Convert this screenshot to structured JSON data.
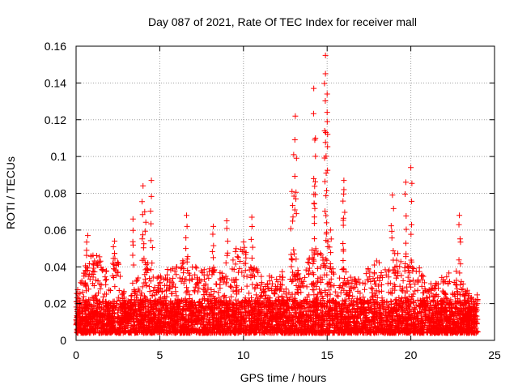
{
  "chart_data": {
    "type": "scatter",
    "title": "Day 087 of 2021, Rate Of TEC Index for receiver mall",
    "xlabel": "GPS time / hours",
    "ylabel": "ROTI / TECUs",
    "xlim": [
      0,
      25
    ],
    "ylim": [
      0,
      0.16
    ],
    "x_ticks": [
      0,
      5,
      10,
      15,
      20,
      25
    ],
    "x_tick_labels": [
      "0",
      "5",
      "10",
      "15",
      "20",
      "25"
    ],
    "y_ticks": [
      0,
      0.02,
      0.04,
      0.06,
      0.08,
      0.1,
      0.12,
      0.14,
      0.16
    ],
    "y_tick_labels": [
      "0",
      "0.02",
      "0.04",
      "0.06",
      "0.08",
      "0.1",
      "0.12",
      "0.14",
      "0.16"
    ],
    "grid": true,
    "marker": "+",
    "marker_color": "#ff0000",
    "series": [
      {
        "name": "",
        "envelope_hours": [
          0,
          0.5,
          1,
          1.5,
          2,
          2.5,
          3,
          3.5,
          4,
          4.5,
          5,
          5.5,
          6,
          6.5,
          7,
          7.5,
          8,
          8.5,
          9,
          9.5,
          10,
          10.5,
          11,
          11.5,
          12,
          12.5,
          13,
          13.5,
          14,
          14.5,
          15,
          15.5,
          16,
          16.5,
          17,
          17.5,
          18,
          18.5,
          19,
          19.5,
          20,
          20.5,
          21,
          21.5,
          22,
          22.5,
          23,
          23.5,
          24
        ],
        "envelope_typical_max": [
          0.025,
          0.04,
          0.05,
          0.045,
          0.045,
          0.05,
          0.02,
          0.03,
          0.045,
          0.04,
          0.035,
          0.04,
          0.04,
          0.045,
          0.04,
          0.04,
          0.04,
          0.04,
          0.035,
          0.05,
          0.055,
          0.045,
          0.035,
          0.035,
          0.035,
          0.04,
          0.05,
          0.035,
          0.05,
          0.05,
          0.05,
          0.035,
          0.04,
          0.035,
          0.035,
          0.04,
          0.045,
          0.04,
          0.05,
          0.045,
          0.04,
          0.04,
          0.03,
          0.035,
          0.035,
          0.04,
          0.035,
          0.025,
          0.025
        ],
        "peaks": [
          {
            "x": 0.7,
            "y": 0.057
          },
          {
            "x": 2.3,
            "y": 0.054
          },
          {
            "x": 3.4,
            "y": 0.066
          },
          {
            "x": 4.0,
            "y": 0.084
          },
          {
            "x": 4.5,
            "y": 0.087
          },
          {
            "x": 4.1,
            "y": 0.07
          },
          {
            "x": 6.6,
            "y": 0.068
          },
          {
            "x": 8.2,
            "y": 0.062
          },
          {
            "x": 9.0,
            "y": 0.065
          },
          {
            "x": 10.5,
            "y": 0.067
          },
          {
            "x": 12.9,
            "y": 0.081
          },
          {
            "x": 13.0,
            "y": 0.101
          },
          {
            "x": 13.1,
            "y": 0.122
          },
          {
            "x": 14.2,
            "y": 0.137
          },
          {
            "x": 14.3,
            "y": 0.11
          },
          {
            "x": 14.2,
            "y": 0.088
          },
          {
            "x": 14.9,
            "y": 0.155
          },
          {
            "x": 14.9,
            "y": 0.145
          },
          {
            "x": 15.0,
            "y": 0.134
          },
          {
            "x": 15.0,
            "y": 0.124
          },
          {
            "x": 15.2,
            "y": 0.06
          },
          {
            "x": 16.0,
            "y": 0.087
          },
          {
            "x": 16.0,
            "y": 0.082
          },
          {
            "x": 18.9,
            "y": 0.079
          },
          {
            "x": 19.7,
            "y": 0.086
          },
          {
            "x": 20.0,
            "y": 0.094
          },
          {
            "x": 22.9,
            "y": 0.068
          }
        ]
      }
    ]
  }
}
